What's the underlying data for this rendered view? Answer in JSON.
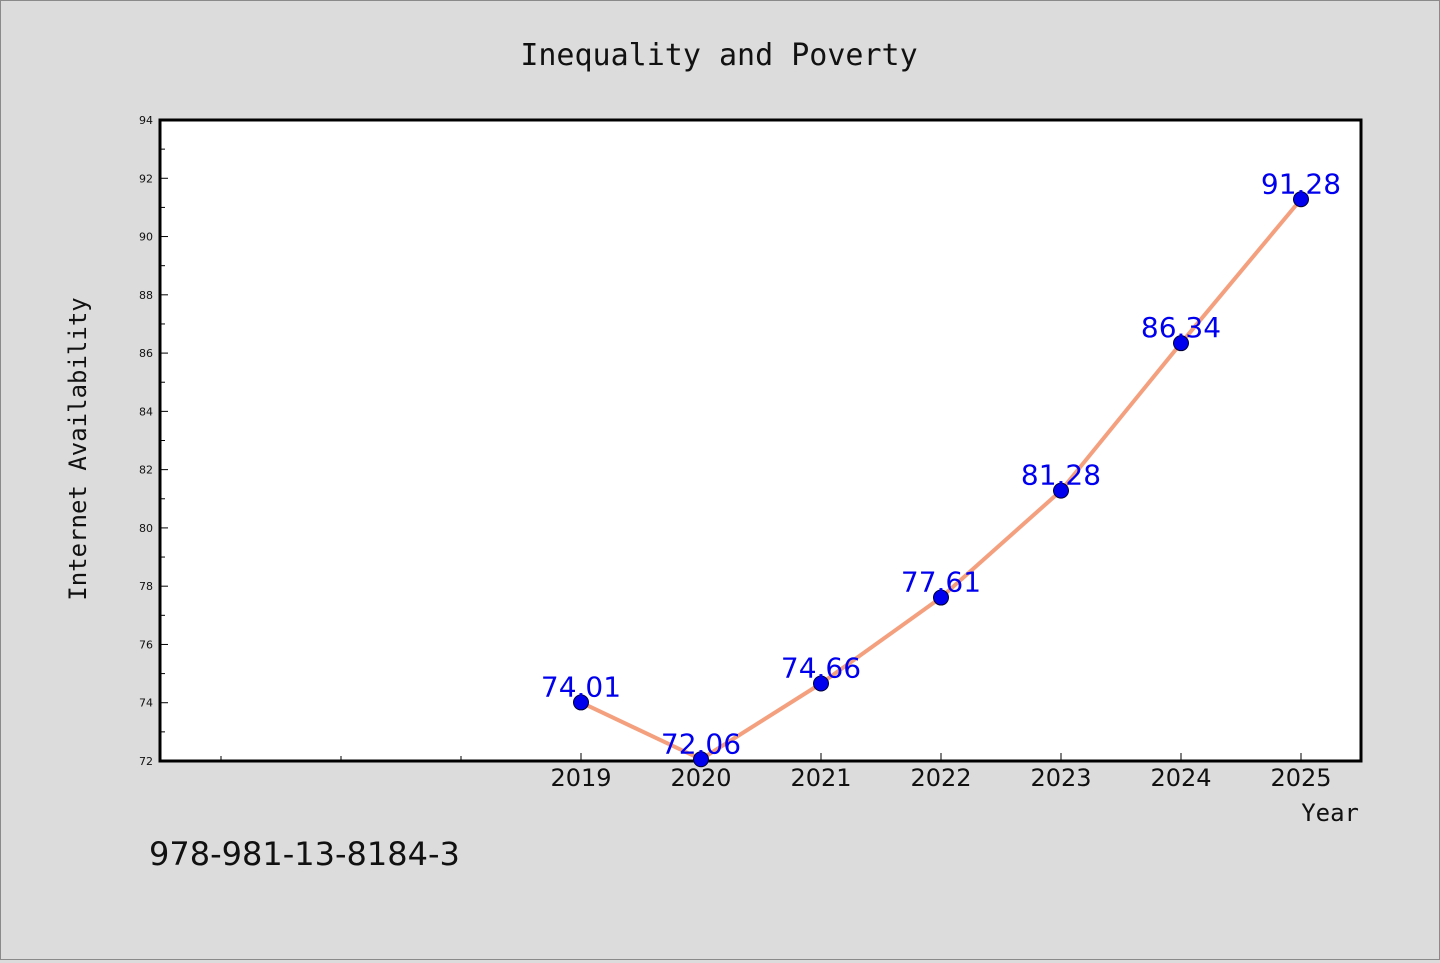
{
  "chart_data": {
    "type": "line",
    "title": "Inequality and Poverty",
    "xlabel": "Year",
    "ylabel": "Internet Availability",
    "x": [
      "2019",
      "2020",
      "2021",
      "2022",
      "2023",
      "2024",
      "2025"
    ],
    "series": [
      {
        "values": [
          74.01,
          72.06,
          74.66,
          77.61,
          81.28,
          86.34,
          91.28
        ],
        "labels": [
          "74.01",
          "72.06",
          "74.66",
          "77.61",
          "81.28",
          "86.34",
          "91.28"
        ]
      }
    ],
    "ylim": [
      72,
      94
    ],
    "yticks": [
      "72",
      "74",
      "76",
      "78",
      "80",
      "82",
      "84",
      "86",
      "88",
      "90",
      "92",
      "94"
    ],
    "grid": false,
    "colors": {
      "line": "#f4a07e",
      "marker": "#0000ee",
      "labels": "#0000ee",
      "background": "#dcdcdc",
      "plot_background": "#ffffff"
    }
  },
  "footer": {
    "isbn": "978-981-13-8184-3"
  }
}
